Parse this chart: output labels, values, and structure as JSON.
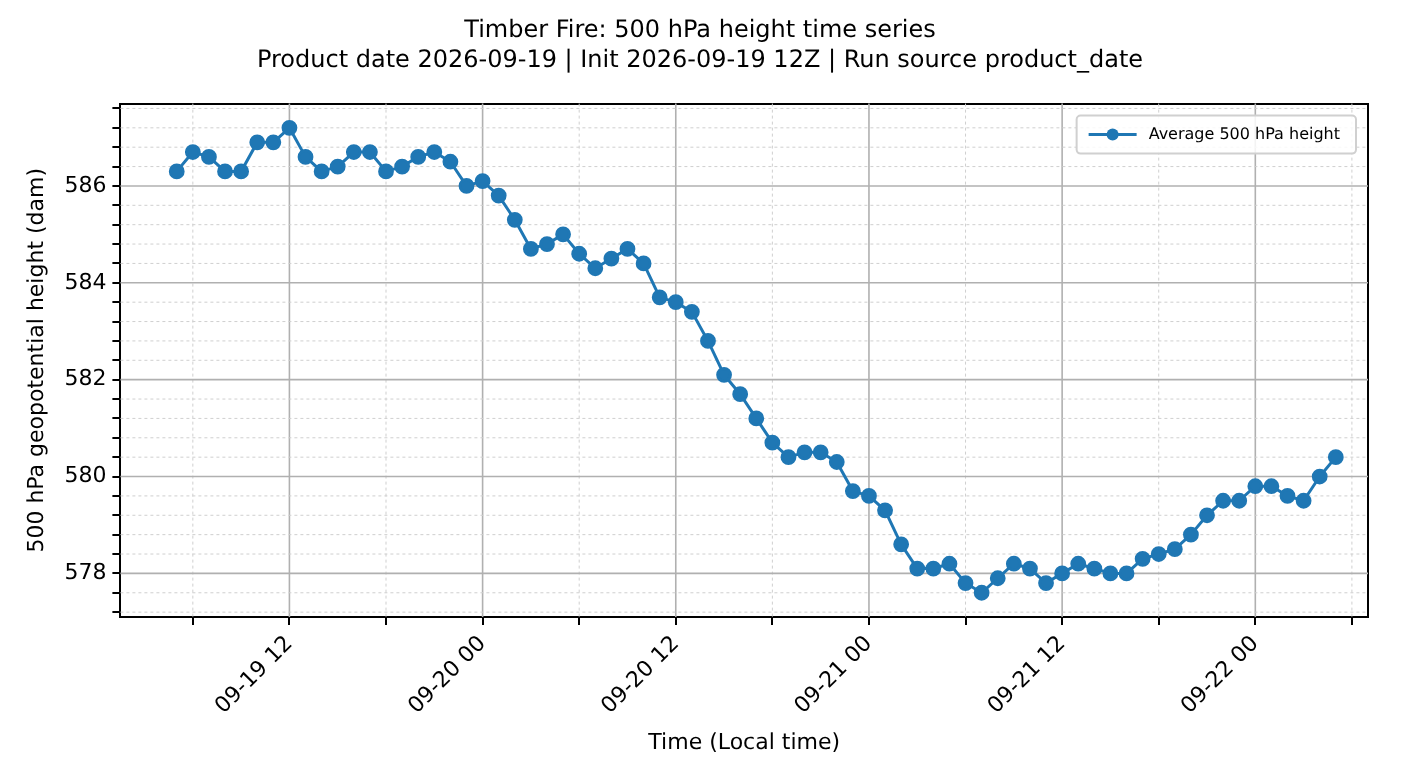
{
  "chart_data": {
    "type": "line",
    "title": "Timber Fire: 500 hPa height time series",
    "subtitle": "Product date 2026-09-19 | Init 2026-09-19 12Z | Run source product_date",
    "xlabel": "Time (Local time)",
    "ylabel": "500 hPa geopotential height (dam)",
    "x": [
      "2026-09-19T05:00",
      "2026-09-19T06:00",
      "2026-09-19T07:00",
      "2026-09-19T08:00",
      "2026-09-19T09:00",
      "2026-09-19T10:00",
      "2026-09-19T11:00",
      "2026-09-19T12:00",
      "2026-09-19T13:00",
      "2026-09-19T14:00",
      "2026-09-19T15:00",
      "2026-09-19T16:00",
      "2026-09-19T17:00",
      "2026-09-19T18:00",
      "2026-09-19T19:00",
      "2026-09-19T20:00",
      "2026-09-19T21:00",
      "2026-09-19T22:00",
      "2026-09-19T23:00",
      "2026-09-20T00:00",
      "2026-09-20T01:00",
      "2026-09-20T02:00",
      "2026-09-20T03:00",
      "2026-09-20T04:00",
      "2026-09-20T05:00",
      "2026-09-20T06:00",
      "2026-09-20T07:00",
      "2026-09-20T08:00",
      "2026-09-20T09:00",
      "2026-09-20T10:00",
      "2026-09-20T11:00",
      "2026-09-20T12:00",
      "2026-09-20T13:00",
      "2026-09-20T14:00",
      "2026-09-20T15:00",
      "2026-09-20T16:00",
      "2026-09-20T17:00",
      "2026-09-20T18:00",
      "2026-09-20T19:00",
      "2026-09-20T20:00",
      "2026-09-20T21:00",
      "2026-09-20T22:00",
      "2026-09-20T23:00",
      "2026-09-21T00:00",
      "2026-09-21T01:00",
      "2026-09-21T02:00",
      "2026-09-21T03:00",
      "2026-09-21T04:00",
      "2026-09-21T05:00",
      "2026-09-21T06:00",
      "2026-09-21T07:00",
      "2026-09-21T08:00",
      "2026-09-21T09:00",
      "2026-09-21T10:00",
      "2026-09-21T11:00",
      "2026-09-21T12:00",
      "2026-09-21T13:00",
      "2026-09-21T14:00",
      "2026-09-21T15:00",
      "2026-09-21T16:00",
      "2026-09-21T17:00",
      "2026-09-21T18:00",
      "2026-09-21T19:00",
      "2026-09-21T20:00",
      "2026-09-21T21:00",
      "2026-09-21T22:00",
      "2026-09-21T23:00",
      "2026-09-22T00:00",
      "2026-09-22T01:00",
      "2026-09-22T02:00",
      "2026-09-22T03:00",
      "2026-09-22T04:00",
      "2026-09-22T05:00"
    ],
    "series": [
      {
        "name": "Average 500 hPa height",
        "color": "#1f77b4",
        "values": [
          586.3,
          586.7,
          586.6,
          586.3,
          586.3,
          586.9,
          586.9,
          587.2,
          586.6,
          586.3,
          586.4,
          586.7,
          586.7,
          586.3,
          586.4,
          586.6,
          586.7,
          586.5,
          586.0,
          586.1,
          585.8,
          585.3,
          584.7,
          584.8,
          585.0,
          584.6,
          584.3,
          584.5,
          584.7,
          584.4,
          583.7,
          583.6,
          583.4,
          582.8,
          582.1,
          581.7,
          581.2,
          580.7,
          580.4,
          580.5,
          580.5,
          580.3,
          579.7,
          579.6,
          579.3,
          578.6,
          578.1,
          578.1,
          578.2,
          577.8,
          577.6,
          577.9,
          578.2,
          578.1,
          577.8,
          578.0,
          578.2,
          578.1,
          578.0,
          578.0,
          578.3,
          578.4,
          578.5,
          578.8,
          579.2,
          579.5,
          579.5,
          579.8,
          579.8,
          579.6,
          579.5,
          580.0,
          580.4
        ]
      }
    ],
    "xlim": [
      "2026-09-19T01:30",
      "2026-09-22T07:00"
    ],
    "xticks": [
      {
        "value": "2026-09-19T06:00",
        "label": null
      },
      {
        "value": "2026-09-19T12:00",
        "label": "09-19 12"
      },
      {
        "value": "2026-09-19T18:00",
        "label": null
      },
      {
        "value": "2026-09-20T00:00",
        "label": "09-20 00"
      },
      {
        "value": "2026-09-20T06:00",
        "label": null
      },
      {
        "value": "2026-09-20T12:00",
        "label": "09-20 12"
      },
      {
        "value": "2026-09-20T18:00",
        "label": null
      },
      {
        "value": "2026-09-21T00:00",
        "label": "09-21 00"
      },
      {
        "value": "2026-09-21T06:00",
        "label": null
      },
      {
        "value": "2026-09-21T12:00",
        "label": "09-21 12"
      },
      {
        "value": "2026-09-21T18:00",
        "label": null
      },
      {
        "value": "2026-09-22T00:00",
        "label": "09-22 00"
      },
      {
        "value": "2026-09-22T06:00",
        "label": null
      }
    ],
    "ylim": [
      577.1,
      587.7
    ],
    "yticks": [
      {
        "value": 577.2,
        "label": null
      },
      {
        "value": 577.6,
        "label": null
      },
      578,
      {
        "value": 578.4,
        "label": null
      },
      {
        "value": 578.8,
        "label": null
      },
      {
        "value": 579.2,
        "label": null
      },
      {
        "value": 579.6,
        "label": null
      },
      580,
      {
        "value": 580.4,
        "label": null
      },
      {
        "value": 580.8,
        "label": null
      },
      {
        "value": 581.2,
        "label": null
      },
      {
        "value": 581.6,
        "label": null
      },
      582,
      {
        "value": 582.4,
        "label": null
      },
      {
        "value": 582.8,
        "label": null
      },
      {
        "value": 583.2,
        "label": null
      },
      {
        "value": 583.6,
        "label": null
      },
      584,
      {
        "value": 584.4,
        "label": null
      },
      {
        "value": 584.8,
        "label": null
      },
      {
        "value": 585.2,
        "label": null
      },
      {
        "value": 585.6,
        "label": null
      },
      586,
      {
        "value": 586.4,
        "label": null
      },
      {
        "value": 586.8,
        "label": null
      },
      {
        "value": 587.2,
        "label": null
      },
      {
        "value": 587.6,
        "label": null
      }
    ],
    "grid": true,
    "legend": "top right",
    "marker": "circle",
    "line_style": "solid"
  }
}
